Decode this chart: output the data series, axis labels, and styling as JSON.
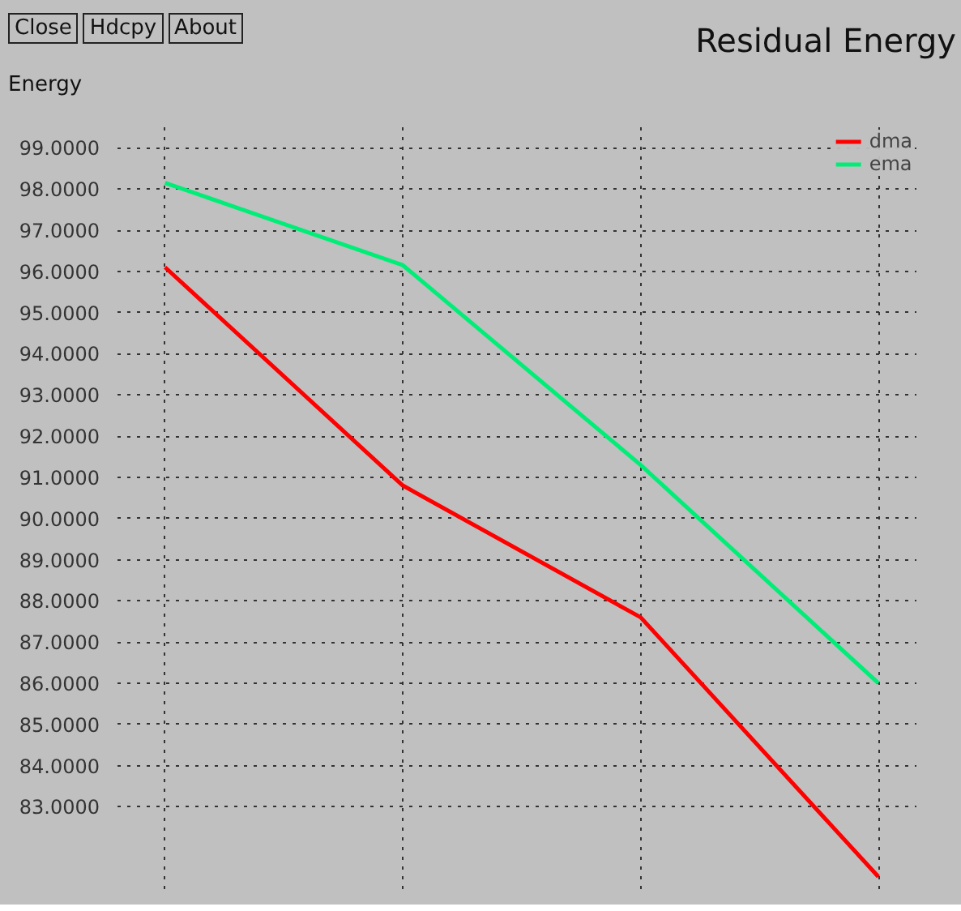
{
  "chart_data": {
    "type": "line",
    "title": "Residual Energy",
    "ylabel": "Energy",
    "annotations": [
      "Close",
      "Hdcpy",
      "About"
    ],
    "categories": [
      null,
      null,
      null,
      null
    ],
    "series": [
      {
        "name": "dma",
        "color": "#ff0000",
        "values": [
          96.1,
          90.8,
          87.6,
          81.3
        ]
      },
      {
        "name": "ema",
        "color": "#00ee77",
        "values": [
          98.15,
          96.15,
          91.3,
          86.0
        ]
      }
    ],
    "ylim": [
      81.0,
      99.5
    ],
    "yticks": [
      {
        "value": 83,
        "label": "83.0000"
      },
      {
        "value": 84,
        "label": "84.0000"
      },
      {
        "value": 85,
        "label": "85.0000"
      },
      {
        "value": 86,
        "label": "86.0000"
      },
      {
        "value": 87,
        "label": "87.0000"
      },
      {
        "value": 88,
        "label": "88.0000"
      },
      {
        "value": 89,
        "label": "89.0000"
      },
      {
        "value": 90,
        "label": "90.0000"
      },
      {
        "value": 91,
        "label": "91.0000"
      },
      {
        "value": 92,
        "label": "92.0000"
      },
      {
        "value": 93,
        "label": "93.0000"
      },
      {
        "value": 94,
        "label": "94.0000"
      },
      {
        "value": 95,
        "label": "95.0000"
      },
      {
        "value": 96,
        "label": "96.0000"
      },
      {
        "value": 97,
        "label": "97.0000"
      },
      {
        "value": 98,
        "label": "98.0000"
      },
      {
        "value": 99,
        "label": "99.0000"
      }
    ],
    "grid": true,
    "legend": "top right",
    "tick_labels": "y"
  }
}
